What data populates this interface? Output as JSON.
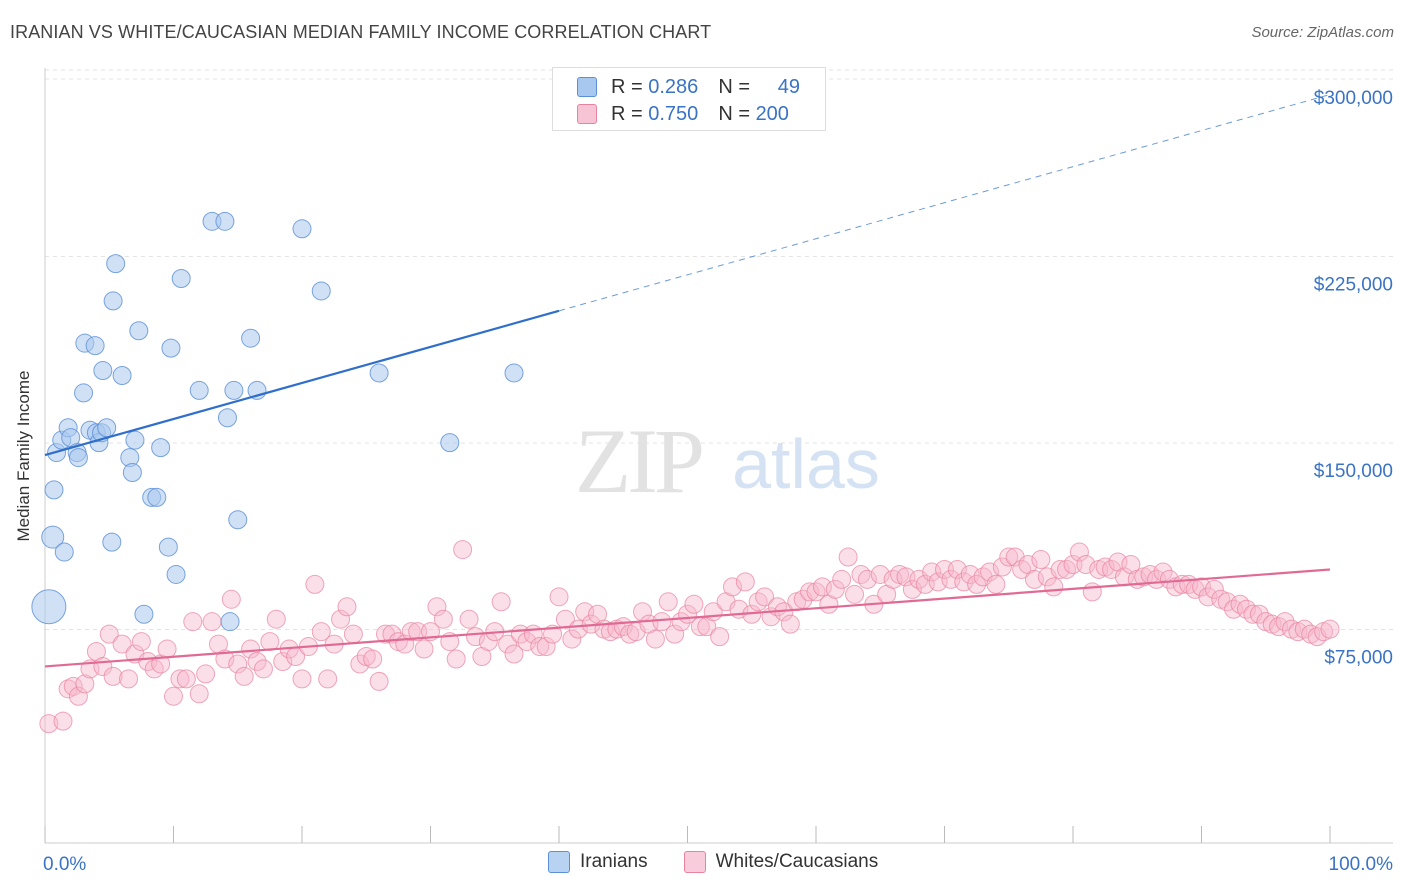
{
  "title": "IRANIAN VS WHITE/CAUCASIAN MEDIAN FAMILY INCOME CORRELATION CHART",
  "source": "Source: ZipAtlas.com",
  "watermark": {
    "zip": "ZIP",
    "atlas": "atlas"
  },
  "legend": {
    "rows": [
      {
        "r_label": "R =",
        "r_value": "0.286",
        "n_label": "N =",
        "n_value": "49"
      },
      {
        "r_label": "R =",
        "r_value": "0.750",
        "n_label": "N =",
        "n_value": "200"
      }
    ]
  },
  "bottom_legend": {
    "iranians": "Iranians",
    "whites": "Whites/Caucasians"
  },
  "colors": {
    "blue_fill": "#a9c8ef",
    "blue_stroke": "#5b8fd6",
    "blue_line": "#2f6fcb",
    "pink_fill": "#f6b8cc",
    "pink_stroke": "#e8839f",
    "pink_line": "#e06a94",
    "tick_label": "#3a73c4"
  },
  "chart_data": {
    "type": "scatter",
    "title": "IRANIAN VS WHITE/CAUCASIAN MEDIAN FAMILY INCOME CORRELATION CHART",
    "xlabel": "",
    "ylabel": "Median Family Income",
    "xlim": [
      0,
      100
    ],
    "ylim": [
      0,
      310000
    ],
    "x_tick_labels": [
      "0.0%",
      "100.0%"
    ],
    "y_ticks": [
      75000,
      150000,
      225000,
      300000
    ],
    "y_tick_labels": [
      "$75,000",
      "$150,000",
      "$225,000",
      "$300,000"
    ],
    "grid": "horizontal dashed",
    "series": [
      {
        "name": "Iranians",
        "r": 0.286,
        "n": 49,
        "trend": {
          "x0": 0,
          "y0": 156000,
          "x1": 40,
          "y1": 214000,
          "x_dash_end": 100,
          "y_dash_end": 301000
        },
        "points": [
          [
            0.3,
            95000
          ],
          [
            0.6,
            123000
          ],
          [
            0.7,
            142000
          ],
          [
            0.9,
            157000
          ],
          [
            1.3,
            162000
          ],
          [
            1.5,
            117000
          ],
          [
            1.8,
            167000
          ],
          [
            2.0,
            163000
          ],
          [
            2.5,
            157000
          ],
          [
            2.6,
            155000
          ],
          [
            3.0,
            181000
          ],
          [
            3.1,
            201000
          ],
          [
            3.5,
            166000
          ],
          [
            3.9,
            200000
          ],
          [
            4.0,
            165000
          ],
          [
            4.2,
            161000
          ],
          [
            4.4,
            165000
          ],
          [
            4.5,
            190000
          ],
          [
            4.8,
            167000
          ],
          [
            5.2,
            121000
          ],
          [
            5.3,
            218000
          ],
          [
            5.5,
            233000
          ],
          [
            6.0,
            188000
          ],
          [
            6.6,
            155000
          ],
          [
            6.8,
            149000
          ],
          [
            7.0,
            162000
          ],
          [
            7.3,
            206000
          ],
          [
            7.7,
            92000
          ],
          [
            8.3,
            139000
          ],
          [
            8.7,
            139000
          ],
          [
            9.0,
            159000
          ],
          [
            9.6,
            119000
          ],
          [
            9.8,
            199000
          ],
          [
            10.2,
            108000
          ],
          [
            10.6,
            227000
          ],
          [
            12.0,
            182000
          ],
          [
            13.0,
            250000
          ],
          [
            14.0,
            250000
          ],
          [
            14.2,
            171000
          ],
          [
            14.4,
            89000
          ],
          [
            14.7,
            182000
          ],
          [
            15.0,
            130000
          ],
          [
            16.0,
            203000
          ],
          [
            16.5,
            182000
          ],
          [
            20.0,
            247000
          ],
          [
            21.5,
            222000
          ],
          [
            26.0,
            189000
          ],
          [
            31.5,
            161000
          ],
          [
            36.5,
            189000
          ]
        ]
      },
      {
        "name": "Whites/Caucasians",
        "r": 0.75,
        "n": 200,
        "trend": {
          "x0": 0,
          "y0": 71000,
          "x1": 100,
          "y1": 110000
        },
        "points": [
          [
            0.3,
            48000
          ],
          [
            1.4,
            49000
          ],
          [
            1.8,
            62000
          ],
          [
            2.2,
            63000
          ],
          [
            2.6,
            59000
          ],
          [
            3.1,
            64000
          ],
          [
            3.5,
            70000
          ],
          [
            4.0,
            77000
          ],
          [
            4.5,
            71000
          ],
          [
            5.0,
            84000
          ],
          [
            5.3,
            67000
          ],
          [
            6.0,
            80000
          ],
          [
            6.5,
            66000
          ],
          [
            7.0,
            76000
          ],
          [
            7.5,
            81000
          ],
          [
            8.0,
            73000
          ],
          [
            8.5,
            70000
          ],
          [
            9.0,
            72000
          ],
          [
            9.5,
            78000
          ],
          [
            10.0,
            59000
          ],
          [
            10.5,
            66000
          ],
          [
            11.0,
            66000
          ],
          [
            11.5,
            89000
          ],
          [
            12.0,
            60000
          ],
          [
            12.5,
            68000
          ],
          [
            13.0,
            89000
          ],
          [
            13.5,
            80000
          ],
          [
            14.0,
            74000
          ],
          [
            14.5,
            98000
          ],
          [
            15.0,
            72000
          ],
          [
            15.5,
            67000
          ],
          [
            16.0,
            78000
          ],
          [
            16.5,
            73000
          ],
          [
            17.0,
            70000
          ],
          [
            17.5,
            81000
          ],
          [
            18.0,
            90000
          ],
          [
            18.5,
            73000
          ],
          [
            19.0,
            78000
          ],
          [
            19.5,
            75000
          ],
          [
            20.0,
            66000
          ],
          [
            20.5,
            79000
          ],
          [
            21.0,
            104000
          ],
          [
            21.5,
            85000
          ],
          [
            22.0,
            66000
          ],
          [
            22.5,
            80000
          ],
          [
            23.0,
            90000
          ],
          [
            23.5,
            95000
          ],
          [
            24.0,
            84000
          ],
          [
            24.5,
            72000
          ],
          [
            25.0,
            75000
          ],
          [
            25.5,
            74000
          ],
          [
            26.0,
            65000
          ],
          [
            26.5,
            84000
          ],
          [
            27.0,
            84000
          ],
          [
            27.5,
            81000
          ],
          [
            28.0,
            80000
          ],
          [
            28.5,
            85000
          ],
          [
            29.0,
            85000
          ],
          [
            29.5,
            78000
          ],
          [
            30.0,
            85000
          ],
          [
            30.5,
            95000
          ],
          [
            31.0,
            90000
          ],
          [
            31.5,
            81000
          ],
          [
            32.0,
            74000
          ],
          [
            32.5,
            118000
          ],
          [
            33.0,
            90000
          ],
          [
            33.5,
            83000
          ],
          [
            34.0,
            75000
          ],
          [
            34.5,
            81000
          ],
          [
            35.0,
            85000
          ],
          [
            35.5,
            97000
          ],
          [
            36.0,
            80000
          ],
          [
            36.5,
            76000
          ],
          [
            37.0,
            84000
          ],
          [
            37.5,
            81000
          ],
          [
            38.0,
            84000
          ],
          [
            38.5,
            79000
          ],
          [
            39.0,
            79000
          ],
          [
            39.5,
            84000
          ],
          [
            40.0,
            99000
          ],
          [
            40.5,
            90000
          ],
          [
            41.0,
            82000
          ],
          [
            41.5,
            86000
          ],
          [
            42.0,
            93000
          ],
          [
            42.5,
            88000
          ],
          [
            43.0,
            92000
          ],
          [
            43.5,
            86000
          ],
          [
            44.0,
            85000
          ],
          [
            44.5,
            86000
          ],
          [
            45.0,
            87000
          ],
          [
            45.5,
            84000
          ],
          [
            46.0,
            85000
          ],
          [
            46.5,
            93000
          ],
          [
            47.0,
            88000
          ],
          [
            47.5,
            82000
          ],
          [
            48.0,
            89000
          ],
          [
            48.5,
            97000
          ],
          [
            49.0,
            84000
          ],
          [
            49.5,
            89000
          ],
          [
            50.0,
            92000
          ],
          [
            50.5,
            96000
          ],
          [
            51.0,
            87000
          ],
          [
            51.5,
            87000
          ],
          [
            52.0,
            93000
          ],
          [
            52.5,
            83000
          ],
          [
            53.0,
            97000
          ],
          [
            53.5,
            103000
          ],
          [
            54.0,
            94000
          ],
          [
            54.5,
            105000
          ],
          [
            55.0,
            92000
          ],
          [
            55.5,
            97000
          ],
          [
            56.0,
            99000
          ],
          [
            56.5,
            91000
          ],
          [
            57.0,
            95000
          ],
          [
            57.5,
            93000
          ],
          [
            58.0,
            88000
          ],
          [
            58.5,
            97000
          ],
          [
            59.0,
            98000
          ],
          [
            59.5,
            101000
          ],
          [
            60.0,
            101000
          ],
          [
            60.5,
            103000
          ],
          [
            61.0,
            96000
          ],
          [
            61.5,
            102000
          ],
          [
            62.0,
            106000
          ],
          [
            62.5,
            115000
          ],
          [
            63.0,
            100000
          ],
          [
            63.5,
            108000
          ],
          [
            64.0,
            106000
          ],
          [
            64.5,
            96000
          ],
          [
            65.0,
            108000
          ],
          [
            65.5,
            100000
          ],
          [
            66.0,
            106000
          ],
          [
            66.5,
            108000
          ],
          [
            67.0,
            107000
          ],
          [
            67.5,
            102000
          ],
          [
            68.0,
            106000
          ],
          [
            68.5,
            104000
          ],
          [
            69.0,
            109000
          ],
          [
            69.5,
            105000
          ],
          [
            70.0,
            110000
          ],
          [
            70.5,
            106000
          ],
          [
            71.0,
            110000
          ],
          [
            71.5,
            105000
          ],
          [
            72.0,
            108000
          ],
          [
            72.5,
            104000
          ],
          [
            73.0,
            107000
          ],
          [
            73.5,
            109000
          ],
          [
            74.0,
            104000
          ],
          [
            74.5,
            111000
          ],
          [
            75.0,
            115000
          ],
          [
            75.5,
            115000
          ],
          [
            76.0,
            110000
          ],
          [
            76.5,
            112000
          ],
          [
            77.0,
            106000
          ],
          [
            77.5,
            114000
          ],
          [
            78.0,
            107000
          ],
          [
            78.5,
            103000
          ],
          [
            79.0,
            110000
          ],
          [
            79.5,
            110000
          ],
          [
            80.0,
            112000
          ],
          [
            80.5,
            117000
          ],
          [
            81.0,
            112000
          ],
          [
            81.5,
            101000
          ],
          [
            82.0,
            110000
          ],
          [
            82.5,
            111000
          ],
          [
            83.0,
            110000
          ],
          [
            83.5,
            113000
          ],
          [
            84.0,
            107000
          ],
          [
            84.5,
            112000
          ],
          [
            85.0,
            106000
          ],
          [
            85.5,
            107000
          ],
          [
            86.0,
            108000
          ],
          [
            86.5,
            106000
          ],
          [
            87.0,
            109000
          ],
          [
            87.5,
            106000
          ],
          [
            88.0,
            103000
          ],
          [
            88.5,
            104000
          ],
          [
            89.0,
            104000
          ],
          [
            89.5,
            102000
          ],
          [
            90.0,
            103000
          ],
          [
            90.5,
            99000
          ],
          [
            91.0,
            102000
          ],
          [
            91.5,
            98000
          ],
          [
            92.0,
            97000
          ],
          [
            92.5,
            94000
          ],
          [
            93.0,
            96000
          ],
          [
            93.5,
            94000
          ],
          [
            94.0,
            92000
          ],
          [
            94.5,
            92000
          ],
          [
            95.0,
            89000
          ],
          [
            95.5,
            88000
          ],
          [
            96.0,
            87000
          ],
          [
            96.5,
            89000
          ],
          [
            97.0,
            86000
          ],
          [
            97.5,
            85000
          ],
          [
            98.0,
            86000
          ],
          [
            98.5,
            84000
          ],
          [
            99.0,
            83000
          ],
          [
            99.5,
            85000
          ],
          [
            100.0,
            86000
          ]
        ]
      }
    ]
  }
}
